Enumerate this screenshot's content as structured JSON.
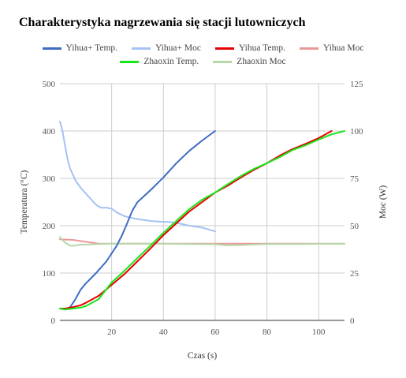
{
  "chart_data": {
    "type": "line",
    "title": "Charakterystyka nagrzewania się stacji lutowniczych",
    "xlabel": "Czas (s)",
    "ylabel": "Temperatura (°C)",
    "y2label": "Moc (W)",
    "xlim": [
      0,
      110
    ],
    "ylim": [
      0,
      500
    ],
    "y2lim": [
      0,
      125
    ],
    "x_ticks": [
      20,
      40,
      60,
      80,
      100
    ],
    "y_ticks": [
      0,
      100,
      200,
      300,
      400,
      500
    ],
    "y2_ticks": [
      0,
      25,
      50,
      75,
      100,
      125
    ],
    "grid": true,
    "legend_position": "top",
    "series": [
      {
        "name": "Yihua+ Temp.",
        "axis": "left",
        "color": "#3d6cc4",
        "x": [
          0,
          2,
          4,
          6,
          8,
          10,
          14,
          18,
          22,
          24,
          26,
          28,
          30,
          35,
          40,
          45,
          50,
          55,
          60
        ],
        "y": [
          25,
          23,
          28,
          45,
          65,
          78,
          100,
          125,
          158,
          180,
          205,
          232,
          250,
          275,
          302,
          332,
          358,
          380,
          400
        ]
      },
      {
        "name": "Yihua+ Moc",
        "axis": "right",
        "color": "#a4c2f4",
        "x": [
          0,
          1,
          2,
          3,
          4,
          5,
          6,
          8,
          10,
          12,
          14,
          16,
          18,
          20,
          22,
          25,
          28,
          30,
          35,
          40,
          42,
          45,
          50,
          55,
          60
        ],
        "y": [
          105,
          100,
          92,
          85,
          80,
          77,
          74,
          70,
          67,
          64,
          61,
          59.5,
          59.5,
          59,
          57,
          55,
          54,
          53.5,
          52.5,
          52,
          52,
          51.5,
          50,
          49,
          47
        ]
      },
      {
        "name": "Yihua Temp.",
        "axis": "left",
        "color": "#e60000",
        "x": [
          0,
          2,
          5,
          8,
          10,
          15,
          20,
          25,
          30,
          35,
          40,
          45,
          50,
          55,
          60,
          65,
          70,
          75,
          80,
          85,
          90,
          95,
          100,
          105
        ],
        "y": [
          25,
          25,
          28,
          32,
          37,
          52,
          75,
          98,
          125,
          152,
          180,
          205,
          230,
          250,
          270,
          285,
          302,
          318,
          332,
          348,
          362,
          373,
          385,
          400
        ]
      },
      {
        "name": "Yihua Moc",
        "axis": "right",
        "color": "#ea9999",
        "x": [
          0,
          5,
          10,
          15,
          20,
          30,
          40,
          50,
          60,
          70,
          80,
          90,
          100,
          110
        ],
        "y": [
          42.8,
          42.5,
          41.5,
          40.5,
          40.5,
          40.5,
          40.5,
          40.5,
          40.5,
          40.5,
          40.5,
          40.5,
          40.5,
          40.5
        ]
      },
      {
        "name": "Zhaoxin Temp.",
        "axis": "left",
        "color": "#19e619",
        "x": [
          0,
          2,
          5,
          8,
          10,
          15,
          20,
          25,
          30,
          35,
          40,
          45,
          50,
          55,
          60,
          65,
          70,
          75,
          80,
          85,
          90,
          95,
          100,
          105,
          110
        ],
        "y": [
          25,
          23,
          25,
          27,
          30,
          45,
          80,
          105,
          132,
          158,
          185,
          210,
          235,
          255,
          270,
          288,
          305,
          320,
          332,
          345,
          360,
          370,
          382,
          393,
          400
        ]
      },
      {
        "name": "Zhaoxin Moc",
        "axis": "right",
        "color": "#b6d7a8",
        "x": [
          0,
          2,
          4,
          6,
          8,
          10,
          15,
          20,
          30,
          40,
          50,
          60,
          65,
          70,
          80,
          90,
          100,
          110
        ],
        "y": [
          44,
          41,
          39.5,
          39.5,
          40,
          40,
          40.3,
          40.5,
          40.5,
          40.5,
          40.3,
          40.2,
          39.6,
          39.8,
          40.3,
          40.3,
          40.4,
          40.4
        ]
      }
    ]
  }
}
